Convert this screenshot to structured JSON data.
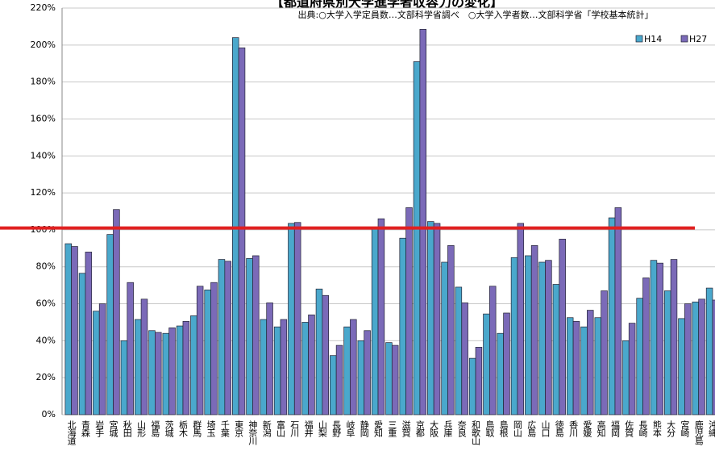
{
  "chart_data": {
    "type": "bar",
    "title": "【都道府県別大学進学者収容力の変化】",
    "subtitle": "出典:○大学入学定員数…文部科学省調べ　○大学入学者数…文部科学省「学校基本統計」",
    "categories": [
      "北海道",
      "青森",
      "岩手",
      "宮城",
      "秋田",
      "山形",
      "福島",
      "茨城",
      "栃木",
      "群馬",
      "埼玉",
      "千葉",
      "東京",
      "神奈川",
      "新潟",
      "富山",
      "石川",
      "福井",
      "山梨",
      "長野",
      "岐阜",
      "静岡",
      "愛知",
      "三重",
      "滋賀",
      "京都",
      "大阪",
      "兵庫",
      "奈良",
      "和歌山",
      "鳥取",
      "島根",
      "岡山",
      "広島",
      "山口",
      "徳島",
      "香川",
      "愛媛",
      "高知",
      "福岡",
      "佐賀",
      "長崎",
      "熊本",
      "大分",
      "宮崎",
      "鹿児島",
      "沖縄"
    ],
    "series": [
      {
        "name": "H14",
        "color": "#4aa8cc",
        "values": [
          92.5,
          76.5,
          56,
          97.5,
          40,
          51.5,
          45.5,
          44,
          48,
          53.5,
          67.5,
          84,
          204,
          84.5,
          51.5,
          47.5,
          103.5,
          50,
          68,
          32,
          47.5,
          40,
          101,
          39,
          95.5,
          191,
          104.5,
          82.5,
          69,
          30.5,
          54.5,
          44,
          85,
          86,
          82.5,
          70.5,
          52.5,
          47.5,
          52.5,
          106.5,
          40,
          63,
          83.5,
          67,
          52,
          61,
          68.5
        ]
      },
      {
        "name": "H27",
        "color": "#7b6ab8",
        "values": [
          91,
          88,
          60,
          111,
          71.5,
          62.5,
          44.5,
          47,
          50.5,
          69.5,
          71.5,
          83,
          198.5,
          86,
          60.5,
          51.5,
          104,
          54,
          64.5,
          37.5,
          51.5,
          45.5,
          106,
          37.5,
          112,
          208.5,
          103.5,
          91.5,
          60.5,
          36.5,
          69.5,
          55,
          103.5,
          91.5,
          83.5,
          95,
          50.5,
          56.5,
          67,
          112,
          49.5,
          74,
          82,
          84,
          60,
          62.5,
          62
        ]
      }
    ],
    "ylim": [
      0,
      220
    ],
    "yticks": [
      {
        "value": 0,
        "label": "0%"
      },
      {
        "value": 20,
        "label": "20%"
      },
      {
        "value": 40,
        "label": "40%"
      },
      {
        "value": 60,
        "label": "60%"
      },
      {
        "value": 80,
        "label": "80%"
      },
      {
        "value": 100,
        "label": "100%"
      },
      {
        "value": 120,
        "label": "120%"
      },
      {
        "value": 140,
        "label": "140%"
      },
      {
        "value": 160,
        "label": "160%"
      },
      {
        "value": 180,
        "label": "180%"
      },
      {
        "value": 200,
        "label": "200%"
      },
      {
        "value": 220,
        "label": "220%"
      }
    ],
    "grid": true,
    "reference_line": {
      "value": 101,
      "color": "#e02020"
    },
    "legend": "top-right"
  }
}
